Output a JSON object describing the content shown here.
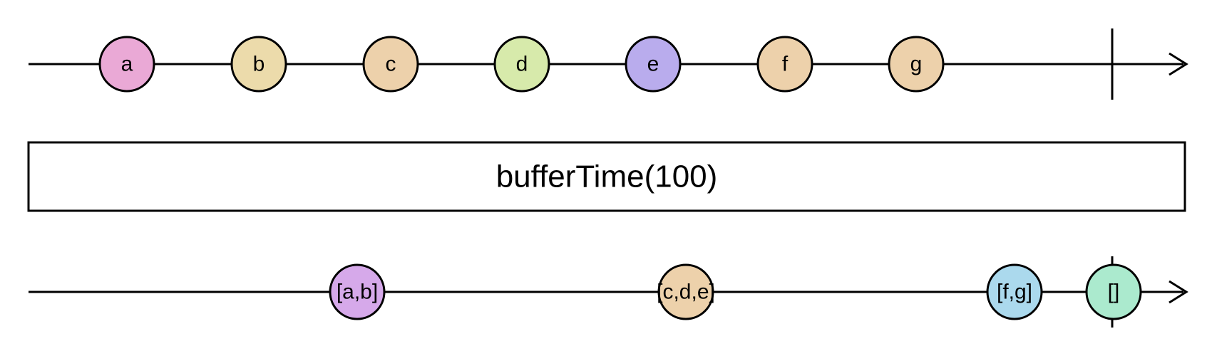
{
  "operator": {
    "label": "bufferTime(100)"
  },
  "input_stream": {
    "marbles": [
      {
        "label": "a",
        "color": "#eaa9d6"
      },
      {
        "label": "b",
        "color": "#ecdbab"
      },
      {
        "label": "c",
        "color": "#edd1ab"
      },
      {
        "label": "d",
        "color": "#d7eaab"
      },
      {
        "label": "e",
        "color": "#b9aced"
      },
      {
        "label": "f",
        "color": "#edd1ab"
      },
      {
        "label": "g",
        "color": "#edd1ab"
      }
    ],
    "completes": true
  },
  "output_stream": {
    "marbles": [
      {
        "label": "[a,b]",
        "color": "#d6a9ea"
      },
      {
        "label": "[c,d,e]",
        "color": "#edd1ab"
      },
      {
        "label": "[f,g]",
        "color": "#abd9ed"
      },
      {
        "label": "[]",
        "color": "#abeace"
      }
    ],
    "completes": true
  }
}
